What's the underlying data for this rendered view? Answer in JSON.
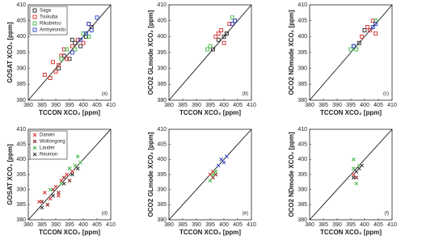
{
  "chart_data": [
    {
      "type": "scatter",
      "marker": "square",
      "legend": "upper left",
      "panel_label": "(a)",
      "xlabel": "TCCON XCO₂ [ppm]",
      "ylabel": "GOSAT XCO₂ [ppm]",
      "xlim": [
        380,
        410
      ],
      "ylim": [
        380,
        410
      ],
      "xticks": [
        380,
        385,
        390,
        395,
        400,
        405,
        410
      ],
      "yticks": [
        380,
        385,
        390,
        395,
        400,
        405,
        410
      ],
      "series": [
        {
          "name": "Saga",
          "color": "#222222",
          "x": [
            391,
            393,
            395,
            397,
            399,
            401,
            396,
            403
          ],
          "y": [
            390,
            394,
            393,
            398,
            397,
            400,
            399,
            403
          ]
        },
        {
          "name": "Tsukuba",
          "color": "#d42a2a",
          "x": [
            386,
            388,
            389,
            391,
            392,
            394,
            396,
            398,
            400,
            402,
            390,
            393
          ],
          "y": [
            388,
            387,
            392,
            391,
            394,
            393,
            397,
            399,
            398,
            404,
            389,
            396
          ]
        },
        {
          "name": "Rikubetsu",
          "color": "#3cb43c",
          "x": [
            392,
            394,
            397,
            400,
            402
          ],
          "y": [
            393,
            396,
            396,
            401,
            400
          ]
        },
        {
          "name": "Anmyeondo",
          "color": "#2a3cc8",
          "x": [
            396,
            399,
            401,
            403,
            405,
            402
          ],
          "y": [
            395,
            399,
            401,
            402,
            406,
            404
          ]
        }
      ]
    },
    {
      "type": "scatter",
      "marker": "square",
      "panel_label": "(b)",
      "xlabel": "TCCON XCO₂ [ppm]",
      "ylabel": "OCO2 GLmode XCO₂ [ppm]",
      "xlim": [
        380,
        410
      ],
      "ylim": [
        380,
        410
      ],
      "xticks": [
        380,
        385,
        390,
        395,
        400,
        405,
        410
      ],
      "yticks": [
        380,
        385,
        390,
        395,
        400,
        405,
        410
      ],
      "series": [
        {
          "name": "Saga",
          "color": "#222222",
          "x": [
            396,
            398,
            400,
            401
          ],
          "y": [
            396,
            399,
            400,
            401
          ]
        },
        {
          "name": "Tsukuba",
          "color": "#d42a2a",
          "x": [
            397,
            399,
            400,
            402,
            398
          ],
          "y": [
            400,
            402,
            398,
            404,
            401
          ]
        },
        {
          "name": "Rikubetsu",
          "color": "#3cb43c",
          "x": [
            394,
            395,
            403,
            404
          ],
          "y": [
            396,
            397,
            406,
            405
          ]
        },
        {
          "name": "Anmyeondo",
          "color": "#2a3cc8",
          "x": [
            403,
            404
          ],
          "y": [
            404,
            405
          ]
        }
      ]
    },
    {
      "type": "scatter",
      "marker": "square",
      "panel_label": "(c)",
      "xlabel": "TCCON XCO₂ [ppm]",
      "ylabel": "OCO2 NDmode XCO₂ [ppm]",
      "xlim": [
        380,
        410
      ],
      "ylim": [
        380,
        410
      ],
      "xticks": [
        380,
        385,
        390,
        395,
        400,
        405,
        410
      ],
      "yticks": [
        380,
        385,
        390,
        395,
        400,
        405,
        410
      ],
      "series": [
        {
          "name": "Saga",
          "color": "#222222",
          "x": [
            396,
            398,
            400
          ],
          "y": [
            397,
            398,
            402
          ]
        },
        {
          "name": "Tsukuba",
          "color": "#d42a2a",
          "x": [
            399,
            401,
            403,
            404,
            402
          ],
          "y": [
            400,
            403,
            405,
            401,
            402
          ]
        },
        {
          "name": "Rikubetsu",
          "color": "#3cb43c",
          "x": [
            395,
            397,
            404
          ],
          "y": [
            396,
            396,
            405
          ]
        },
        {
          "name": "Anmyeondo",
          "color": "#2a3cc8",
          "x": [
            396,
            403,
            404
          ],
          "y": [
            397,
            403,
            404
          ]
        }
      ]
    },
    {
      "type": "scatter",
      "marker": "x",
      "legend": "upper left",
      "panel_label": "(d)",
      "xlabel": "TCCON XCO₂ [ppm]",
      "ylabel": "GOSAT XCO₂ [ppm]",
      "xlim": [
        380,
        410
      ],
      "ylim": [
        380,
        410
      ],
      "xticks": [
        380,
        385,
        390,
        395,
        400,
        405,
        410
      ],
      "yticks": [
        380,
        385,
        390,
        395,
        400,
        405,
        410
      ],
      "series": [
        {
          "name": "Darwin",
          "color": "#d42a2a",
          "x": [
            384,
            386,
            388,
            390,
            392,
            394,
            396,
            387,
            391
          ],
          "y": [
            386,
            389,
            387,
            391,
            393,
            395,
            396,
            385,
            388
          ]
        },
        {
          "name": "Wollongong",
          "color": "#8a1a1a",
          "x": [
            385,
            387,
            389,
            391,
            393,
            395
          ],
          "y": [
            386,
            385,
            390,
            389,
            394,
            393
          ]
        },
        {
          "name": "Lauder",
          "color": "#3cb43c",
          "x": [
            388,
            392,
            395,
            397,
            398,
            399
          ],
          "y": [
            390,
            392,
            397,
            398,
            401,
            399
          ]
        },
        {
          "name": "Reunion",
          "color": "#222222",
          "x": [
            385,
            389,
            393,
            396,
            398
          ],
          "y": [
            384,
            388,
            392,
            395,
            397
          ]
        }
      ]
    },
    {
      "type": "scatter",
      "marker": "x",
      "panel_label": "(e)",
      "xlabel": "TCCON XCO₂ [ppm]",
      "ylabel": "OCO2 GLmode XCO₂ [ppm]",
      "xlim": [
        380,
        410
      ],
      "ylim": [
        380,
        410
      ],
      "xticks": [
        380,
        385,
        390,
        395,
        400,
        405,
        410
      ],
      "yticks": [
        380,
        385,
        390,
        395,
        400,
        405,
        410
      ],
      "series": [
        {
          "name": "Darwin",
          "color": "#d42a2a",
          "x": [
            395,
            396
          ],
          "y": [
            395,
            396
          ]
        },
        {
          "name": "Wollongong",
          "color": "#8a1a1a",
          "x": [
            396,
            397
          ],
          "y": [
            394,
            395
          ]
        },
        {
          "name": "Lauder",
          "color": "#3cb43c",
          "x": [
            395,
            396,
            397
          ],
          "y": [
            393,
            395,
            396
          ]
        },
        {
          "name": "Reunion",
          "color": "#2a3cc8",
          "x": [
            398,
            399,
            400,
            401
          ],
          "y": [
            398,
            400,
            399,
            401
          ]
        }
      ]
    },
    {
      "type": "scatter",
      "marker": "x",
      "panel_label": "(f)",
      "xlabel": "TCCON XCO₂ [ppm]",
      "ylabel": "OCO2 NDmode XCO₂ [ppm]",
      "xlim": [
        380,
        410
      ],
      "ylim": [
        380,
        410
      ],
      "xticks": [
        380,
        385,
        390,
        395,
        400,
        405,
        410
      ],
      "yticks": [
        380,
        385,
        390,
        395,
        400,
        405,
        410
      ],
      "series": [
        {
          "name": "Darwin",
          "color": "#d42a2a",
          "x": [
            396
          ],
          "y": [
            395
          ]
        },
        {
          "name": "Wollongong",
          "color": "#8a1a1a",
          "x": [
            397
          ],
          "y": [
            394
          ]
        },
        {
          "name": "Lauder",
          "color": "#3cb43c",
          "x": [
            396,
            397,
            398,
            396
          ],
          "y": [
            400,
            392,
            398,
            397
          ]
        },
        {
          "name": "Reunion",
          "color": "#222222",
          "x": [
            396,
            397,
            398,
            399
          ],
          "y": [
            394,
            396,
            397,
            398
          ]
        }
      ]
    }
  ]
}
